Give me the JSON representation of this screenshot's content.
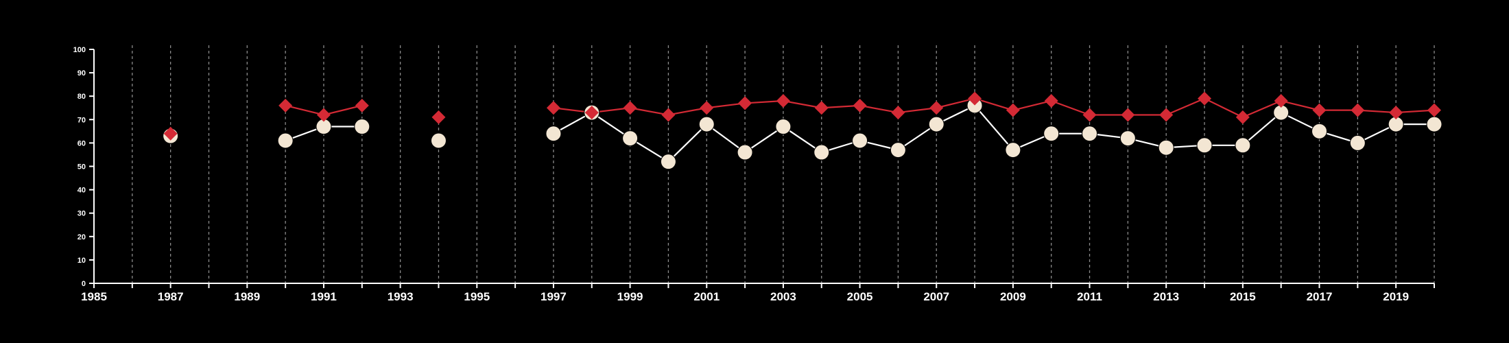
{
  "chart_data": {
    "type": "line",
    "title": "",
    "xlabel": "",
    "ylabel": "",
    "xlim": [
      1985,
      2020
    ],
    "ylim": [
      0,
      100
    ],
    "x_ticks_labeled": [
      1985,
      1987,
      1989,
      1991,
      1993,
      1995,
      1997,
      1999,
      2001,
      2003,
      2005,
      2007,
      2009,
      2011,
      2013,
      2015,
      2017,
      2019
    ],
    "x_gridlines": [
      1986,
      1987,
      1988,
      1989,
      1990,
      1991,
      1992,
      1993,
      1994,
      1995,
      1996,
      1997,
      1998,
      1999,
      2000,
      2001,
      2002,
      2003,
      2004,
      2005,
      2006,
      2007,
      2008,
      2009,
      2010,
      2011,
      2012,
      2013,
      2014,
      2015,
      2016,
      2017,
      2018,
      2019,
      2020
    ],
    "y_ticks": [
      0,
      10,
      20,
      30,
      40,
      50,
      60,
      70,
      80,
      90,
      100
    ],
    "grid": "vertical dashed",
    "legend": "none",
    "background": "#000000",
    "series": [
      {
        "marker": "circle",
        "color": "#f3e6d3",
        "line_color": "#ffffff",
        "x": [
          1987,
          1990,
          1991,
          1992,
          1994,
          1997,
          1998,
          1999,
          2000,
          2001,
          2002,
          2003,
          2004,
          2005,
          2006,
          2007,
          2008,
          2009,
          2010,
          2011,
          2012,
          2013,
          2014,
          2015,
          2016,
          2017,
          2018,
          2019,
          2020
        ],
        "values": [
          63,
          61,
          67,
          67,
          61,
          64,
          73,
          62,
          52,
          68,
          56,
          67,
          56,
          61,
          57,
          68,
          76,
          57,
          64,
          64,
          62,
          58,
          59,
          59,
          73,
          65,
          60,
          68,
          68
        ]
      },
      {
        "marker": "diamond",
        "color": "#d42a35",
        "line_color": "#d42a35",
        "x": [
          1987,
          1990,
          1991,
          1992,
          1994,
          1997,
          1998,
          1999,
          2000,
          2001,
          2002,
          2003,
          2004,
          2005,
          2006,
          2007,
          2008,
          2009,
          2010,
          2011,
          2012,
          2013,
          2014,
          2015,
          2016,
          2017,
          2018,
          2019,
          2020
        ],
        "values": [
          64,
          76,
          72,
          76,
          71,
          75,
          73,
          75,
          72,
          75,
          77,
          78,
          75,
          76,
          73,
          75,
          79,
          74,
          78,
          72,
          72,
          72,
          79,
          71,
          78,
          74,
          74,
          73,
          74
        ]
      }
    ]
  }
}
